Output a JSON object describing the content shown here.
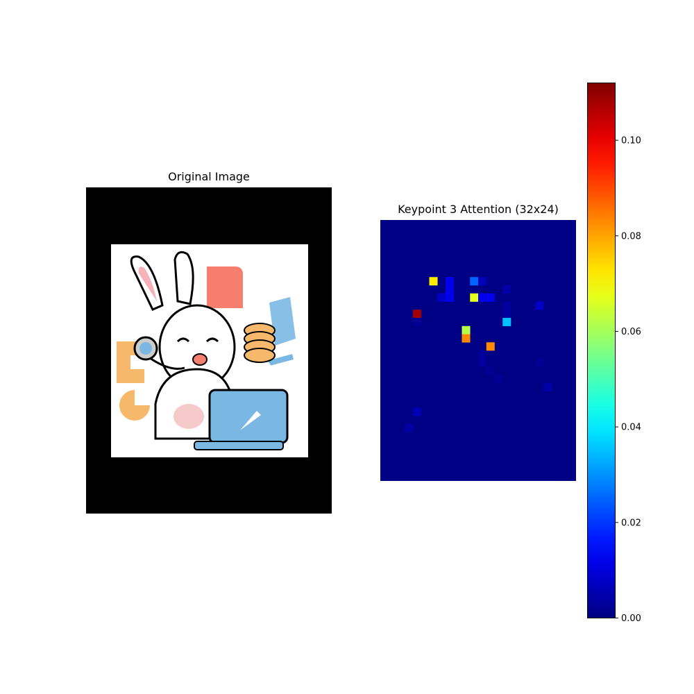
{
  "titles": {
    "left": "Original Image",
    "right": "Keypoint 3 Attention (32x24)"
  },
  "chart_data": {
    "type": "heatmap",
    "title": "Keypoint 3 Attention (32x24)",
    "rows": 32,
    "cols": 24,
    "colormap": "jet",
    "vmin": 0.0,
    "vmax": 0.112,
    "colorbar_ticks": [
      0.0,
      0.02,
      0.04,
      0.06,
      0.08,
      0.1
    ],
    "colorbar_tick_labels": [
      "0.00",
      "0.02",
      "0.04",
      "0.06",
      "0.08",
      "0.10"
    ],
    "background_value": 0.0005,
    "cells": [
      {
        "row": 7,
        "col": 6,
        "value": 0.072
      },
      {
        "row": 7,
        "col": 8,
        "value": 0.012
      },
      {
        "row": 7,
        "col": 11,
        "value": 0.025
      },
      {
        "row": 7,
        "col": 12,
        "value": 0.006
      },
      {
        "row": 8,
        "col": 8,
        "value": 0.012
      },
      {
        "row": 8,
        "col": 15,
        "value": 0.004
      },
      {
        "row": 9,
        "col": 7,
        "value": 0.008
      },
      {
        "row": 9,
        "col": 8,
        "value": 0.012
      },
      {
        "row": 9,
        "col": 11,
        "value": 0.067
      },
      {
        "row": 9,
        "col": 12,
        "value": 0.012
      },
      {
        "row": 9,
        "col": 13,
        "value": 0.012
      },
      {
        "row": 10,
        "col": 19,
        "value": 0.008
      },
      {
        "row": 10,
        "col": 15,
        "value": 0.003
      },
      {
        "row": 11,
        "col": 4,
        "value": 0.108
      },
      {
        "row": 11,
        "col": 15,
        "value": 0.003
      },
      {
        "row": 12,
        "col": 15,
        "value": 0.035
      },
      {
        "row": 12,
        "col": 4,
        "value": 0.002
      },
      {
        "row": 13,
        "col": 10,
        "value": 0.062
      },
      {
        "row": 14,
        "col": 10,
        "value": 0.083
      },
      {
        "row": 15,
        "col": 13,
        "value": 0.083
      },
      {
        "row": 16,
        "col": 12,
        "value": 0.003
      },
      {
        "row": 17,
        "col": 12,
        "value": 0.003
      },
      {
        "row": 17,
        "col": 19,
        "value": 0.002
      },
      {
        "row": 18,
        "col": 13,
        "value": 0.002
      },
      {
        "row": 19,
        "col": 14,
        "value": 0.002
      },
      {
        "row": 20,
        "col": 20,
        "value": 0.004
      },
      {
        "row": 23,
        "col": 4,
        "value": 0.006
      },
      {
        "row": 25,
        "col": 3,
        "value": 0.004
      }
    ]
  }
}
